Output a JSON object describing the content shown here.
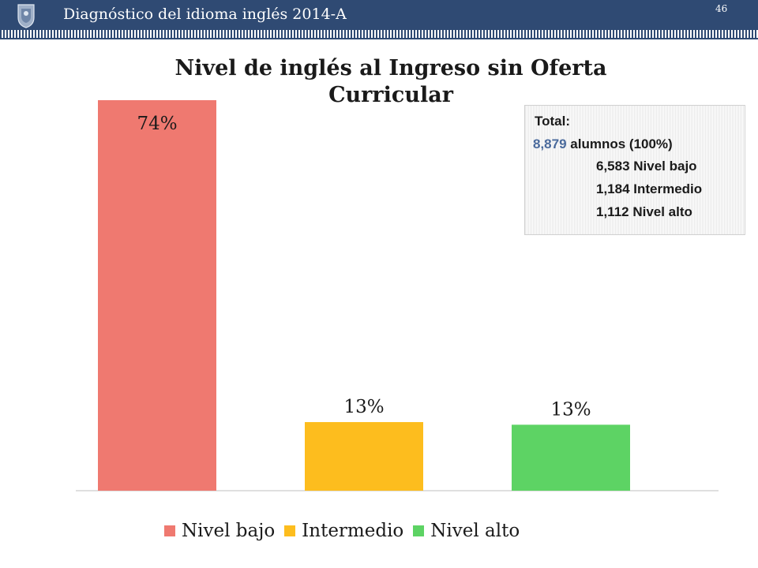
{
  "header": {
    "title": "Diagnóstico del idioma inglés 2014-A",
    "page_number": "46",
    "logo_icon": "university-crest-icon",
    "color": "#2f4a73"
  },
  "summary": {
    "heading": "Total:",
    "total_count": "8,879",
    "total_suffix": "alumnos (100%)",
    "lines": [
      "6,583 Nivel bajo",
      "1,184 Intermedio",
      "1,112 Nivel alto"
    ]
  },
  "chart_data": {
    "type": "bar",
    "title": "Nivel de inglés al Ingreso  sin Oferta Curricular",
    "categories": [
      "Nivel bajo",
      "Intermedio",
      "Nivel alto"
    ],
    "values": [
      74,
      13,
      12.5
    ],
    "data_labels": [
      "74%",
      "13%",
      "13%"
    ],
    "colors": [
      "#ef7970",
      "#fdbd1e",
      "#5dd364"
    ],
    "xlabel": "",
    "ylabel": "",
    "ylim": [
      0,
      74
    ],
    "grid": false,
    "legend": "bottom"
  }
}
